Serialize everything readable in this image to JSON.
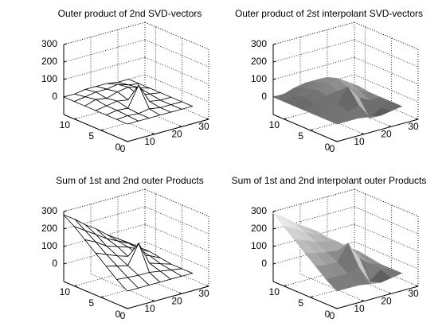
{
  "chart_data": [
    {
      "type": "surface",
      "title": "Outer product of 2nd SVD-vectors",
      "style": "mesh",
      "edge_color": "#000000",
      "face_color": "#ffffff",
      "grid": true,
      "x": [
        0,
        4,
        8,
        12,
        16,
        20,
        24
      ],
      "y": [
        0,
        2,
        4,
        6,
        8,
        10,
        12
      ],
      "z": [
        [
          0,
          0,
          0,
          0,
          0,
          0,
          0
        ],
        [
          0,
          5,
          0,
          10,
          0,
          0,
          0
        ],
        [
          0,
          10,
          5,
          120,
          10,
          0,
          0
        ],
        [
          0,
          10,
          20,
          10,
          20,
          10,
          0
        ],
        [
          0,
          20,
          10,
          30,
          40,
          20,
          0
        ],
        [
          0,
          10,
          20,
          20,
          30,
          10,
          0
        ],
        [
          0,
          0,
          10,
          10,
          10,
          0,
          0
        ]
      ],
      "xlim": [
        0,
        30
      ],
      "ylim": [
        0,
        12
      ],
      "zlim": [
        -100,
        300
      ],
      "xticks": [
        0,
        10,
        20,
        30
      ],
      "yticks": [
        0,
        5,
        10
      ],
      "zticks": [
        0,
        100,
        200,
        300
      ]
    },
    {
      "type": "surface",
      "title": "Outer product of 2st interpolant SVD-vectors",
      "style": "shaded",
      "colormap": "gray",
      "grid": true,
      "x": [
        0,
        4,
        8,
        12,
        16,
        20,
        24
      ],
      "y": [
        0,
        2,
        4,
        6,
        8,
        10,
        12
      ],
      "z": [
        [
          0,
          0,
          0,
          -10,
          -20,
          -10,
          0
        ],
        [
          0,
          5,
          10,
          30,
          -60,
          -20,
          0
        ],
        [
          0,
          10,
          30,
          110,
          30,
          0,
          0
        ],
        [
          0,
          20,
          50,
          60,
          60,
          30,
          0
        ],
        [
          0,
          30,
          60,
          80,
          90,
          50,
          10
        ],
        [
          0,
          20,
          40,
          60,
          70,
          40,
          0
        ],
        [
          0,
          0,
          20,
          30,
          30,
          10,
          0
        ]
      ],
      "xlim": [
        0,
        30
      ],
      "ylim": [
        0,
        12
      ],
      "zlim": [
        -100,
        300
      ],
      "xticks": [
        0,
        10,
        20,
        30
      ],
      "yticks": [
        0,
        5,
        10
      ],
      "zticks": [
        0,
        100,
        200,
        300
      ]
    },
    {
      "type": "surface",
      "title": "Sum of 1st and 2nd outer Products",
      "style": "mesh",
      "edge_color": "#000000",
      "face_color": "#ffffff",
      "grid": true,
      "x": [
        0,
        4,
        8,
        12,
        16,
        20,
        24
      ],
      "y": [
        0,
        2,
        4,
        6,
        8,
        10,
        12
      ],
      "z": [
        [
          0,
          0,
          0,
          0,
          0,
          0,
          0
        ],
        [
          40,
          35,
          30,
          30,
          20,
          10,
          0
        ],
        [
          90,
          75,
          60,
          170,
          40,
          20,
          0
        ],
        [
          140,
          115,
          90,
          70,
          60,
          40,
          10
        ],
        [
          190,
          160,
          120,
          100,
          80,
          50,
          20
        ],
        [
          240,
          200,
          160,
          120,
          90,
          60,
          20
        ],
        [
          280,
          240,
          190,
          150,
          100,
          60,
          20
        ]
      ],
      "xlim": [
        0,
        30
      ],
      "ylim": [
        0,
        12
      ],
      "zlim": [
        -100,
        300
      ],
      "xticks": [
        0,
        10,
        20,
        30
      ],
      "yticks": [
        0,
        5,
        10
      ],
      "zticks": [
        0,
        100,
        200,
        300
      ]
    },
    {
      "type": "surface",
      "title": "Sum of 1st and 2nd interpolant outer Products",
      "style": "shaded",
      "colormap": "gray",
      "grid": true,
      "x": [
        0,
        4,
        8,
        12,
        16,
        20,
        24
      ],
      "y": [
        0,
        2,
        4,
        6,
        8,
        10,
        12
      ],
      "z": [
        [
          0,
          0,
          0,
          -10,
          -20,
          -10,
          0
        ],
        [
          40,
          40,
          40,
          60,
          -40,
          10,
          0
        ],
        [
          90,
          80,
          80,
          170,
          70,
          20,
          0
        ],
        [
          140,
          120,
          110,
          100,
          80,
          50,
          10
        ],
        [
          190,
          170,
          140,
          130,
          110,
          60,
          20
        ],
        [
          240,
          210,
          170,
          140,
          110,
          60,
          20
        ],
        [
          290,
          250,
          200,
          160,
          120,
          60,
          20
        ]
      ],
      "xlim": [
        0,
        30
      ],
      "ylim": [
        0,
        12
      ],
      "zlim": [
        -100,
        300
      ],
      "xticks": [
        0,
        10,
        20,
        30
      ],
      "yticks": [
        0,
        5,
        10
      ],
      "zticks": [
        0,
        100,
        200,
        300
      ]
    }
  ]
}
